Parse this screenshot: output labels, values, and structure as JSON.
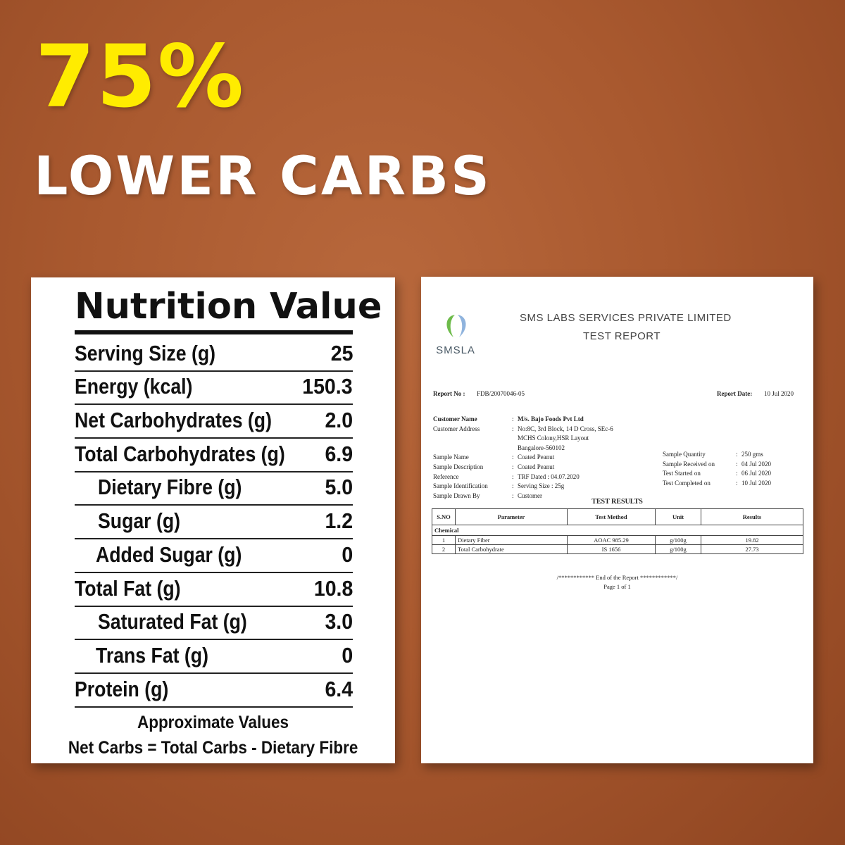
{
  "headline": {
    "big": "75%",
    "sub": "LOWER CARBS",
    "big_color": "#ffec00"
  },
  "nutrition": {
    "title": "Nutrition Value",
    "rows": [
      {
        "label": "Serving Size (g)",
        "value": "25"
      },
      {
        "label": "Energy (kcal)",
        "value": "150.3"
      },
      {
        "label": "Net Carbohydrates (g)",
        "value": "2.0"
      },
      {
        "label": "Total Carbohydrates (g)",
        "value": "6.9"
      },
      {
        "label": "Dietary Fibre (g)",
        "value": "5.0"
      },
      {
        "label": "Sugar (g)",
        "value": "1.2"
      },
      {
        "label": "Added Sugar (g)",
        "value": "0"
      },
      {
        "label": "Total Fat (g)",
        "value": "10.8"
      },
      {
        "label": "Saturated Fat (g)",
        "value": "3.0"
      },
      {
        "label": "Trans Fat (g)",
        "value": "0"
      },
      {
        "label": "Protein (g)",
        "value": "6.4"
      }
    ],
    "footnote1": "Approximate Values",
    "footnote2": "Net Carbs = Total Carbs - Dietary Fibre"
  },
  "report": {
    "logo_text": "SMSLA",
    "company": "SMS LABS SERVICES PRIVATE LIMITED",
    "title": "TEST REPORT",
    "report_no_label": "Report No :",
    "report_no": "FDB/20070046-05",
    "report_date_label": "Report Date:",
    "report_date": "10 Jul 2020",
    "customer_name_label": "Customer Name",
    "customer_name": "M/s. Bajo Foods Pvt Ltd",
    "customer_address_label": "Customer Address",
    "address_line1": "No:8C, 3rd Block, 14 D Cross, SEc-6",
    "address_line2": "MCHS Colony,HSR Layout",
    "address_line3": "Bangalore-560102",
    "sample_name_label": "Sample Name",
    "sample_name": "Coated Peanut",
    "sample_description_label": "Sample Description",
    "sample_description": "Coated Peanut",
    "reference_label": "Reference",
    "reference": "TRF Dated : 04.07.2020",
    "sample_identification_label": "Sample Identification",
    "sample_identification": "Serving Size : 25g",
    "sample_drawn_by_label": "Sample Drawn By",
    "sample_drawn_by": "Customer",
    "sample_quantity_label": "Sample Quantity",
    "sample_quantity": "250 gms",
    "sample_received_label": "Sample Received on",
    "sample_received": "04 Jul 2020",
    "test_started_label": "Test Started on",
    "test_started": "06 Jul 2020",
    "test_completed_label": "Test Completed on",
    "test_completed": "10 Jul 2020",
    "results_title": "TEST RESULTS",
    "table_headers": [
      "S.NO",
      "Parameter",
      "Test Method",
      "Unit",
      "Results"
    ],
    "section": "Chemical",
    "rows": [
      {
        "sno": "1",
        "parameter": "Dietary Fiber",
        "method": "AOAC 985.29",
        "unit": "g/100g",
        "result": "19.82"
      },
      {
        "sno": "2",
        "parameter": "Total Carbohydrate",
        "method": "IS 1656",
        "unit": "g/100g",
        "result": "27.73"
      }
    ],
    "end_text": "/************ End of the Report ************/",
    "page_text": "Page 1 of 1"
  }
}
